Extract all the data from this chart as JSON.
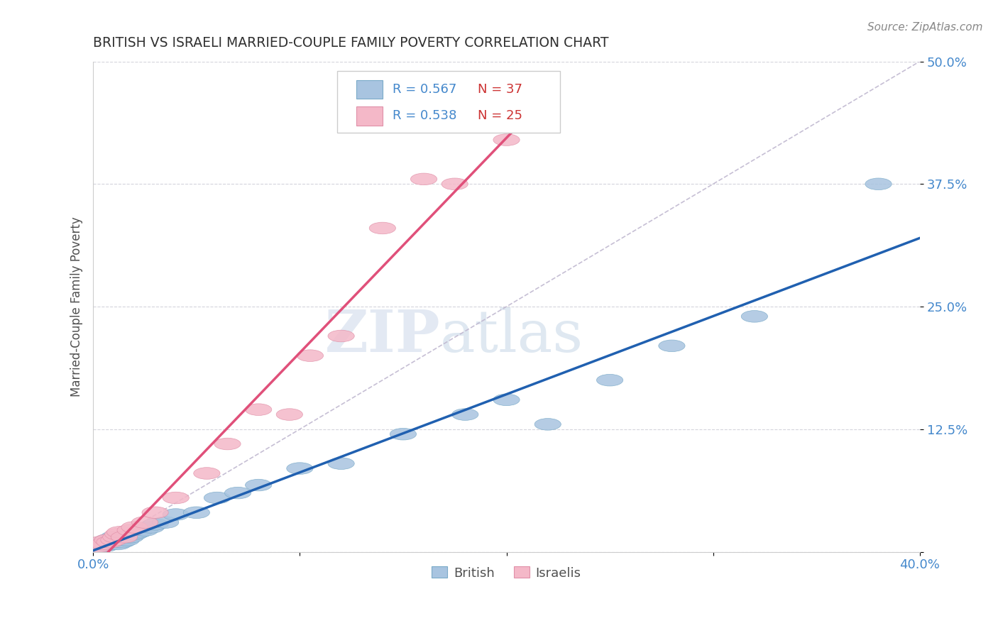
{
  "title": "BRITISH VS ISRAELI MARRIED-COUPLE FAMILY POVERTY CORRELATION CHART",
  "source": "Source: ZipAtlas.com",
  "xlabel": "",
  "ylabel": "Married-Couple Family Poverty",
  "xmin": 0.0,
  "xmax": 0.4,
  "ymin": 0.0,
  "ymax": 0.5,
  "british_R": 0.567,
  "british_N": 37,
  "israeli_R": 0.538,
  "israeli_N": 25,
  "british_color": "#a8c4e0",
  "british_edge_color": "#7aaac8",
  "israeli_color": "#f4b8c8",
  "israeli_edge_color": "#e090a8",
  "british_line_color": "#2060b0",
  "israeli_line_color": "#e0507a",
  "ref_line_color": "#c0b8d0",
  "title_color": "#303030",
  "axis_label_color": "#505050",
  "tick_color": "#4488cc",
  "legend_r_color": "#4488cc",
  "legend_n_color": "#cc3333",
  "watermark_color": "#ccd8ea",
  "grid_color": "#d0d0d8",
  "british_x": [
    0.002,
    0.004,
    0.005,
    0.006,
    0.007,
    0.008,
    0.009,
    0.01,
    0.01,
    0.011,
    0.012,
    0.013,
    0.014,
    0.015,
    0.016,
    0.018,
    0.02,
    0.022,
    0.025,
    0.028,
    0.03,
    0.035,
    0.04,
    0.05,
    0.06,
    0.07,
    0.08,
    0.1,
    0.12,
    0.15,
    0.18,
    0.2,
    0.22,
    0.25,
    0.28,
    0.32,
    0.38
  ],
  "british_y": [
    0.005,
    0.008,
    0.01,
    0.006,
    0.012,
    0.01,
    0.008,
    0.015,
    0.01,
    0.012,
    0.008,
    0.015,
    0.01,
    0.014,
    0.012,
    0.015,
    0.018,
    0.02,
    0.022,
    0.025,
    0.028,
    0.03,
    0.038,
    0.04,
    0.055,
    0.06,
    0.068,
    0.085,
    0.09,
    0.12,
    0.14,
    0.155,
    0.13,
    0.175,
    0.21,
    0.24,
    0.375
  ],
  "israeli_x": [
    0.002,
    0.004,
    0.005,
    0.007,
    0.008,
    0.01,
    0.011,
    0.012,
    0.013,
    0.015,
    0.018,
    0.02,
    0.025,
    0.03,
    0.04,
    0.055,
    0.065,
    0.08,
    0.095,
    0.105,
    0.12,
    0.14,
    0.16,
    0.175,
    0.2
  ],
  "israeli_y": [
    0.005,
    0.01,
    0.008,
    0.012,
    0.01,
    0.012,
    0.015,
    0.018,
    0.02,
    0.015,
    0.022,
    0.025,
    0.03,
    0.04,
    0.055,
    0.08,
    0.11,
    0.145,
    0.14,
    0.2,
    0.22,
    0.33,
    0.38,
    0.375,
    0.42
  ]
}
